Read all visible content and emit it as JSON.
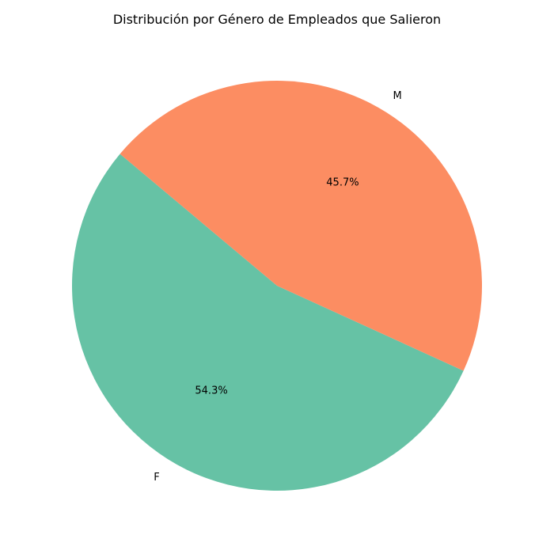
{
  "chart_data": {
    "type": "pie",
    "title": "Distribución por Género de Empleados que Salieron",
    "categories": [
      "F",
      "M"
    ],
    "values": [
      54.3,
      45.7
    ],
    "percent_labels": [
      "54.3%",
      "45.7%"
    ],
    "colors": [
      "#66c2a5",
      "#fc8d62"
    ],
    "legend": "none"
  }
}
